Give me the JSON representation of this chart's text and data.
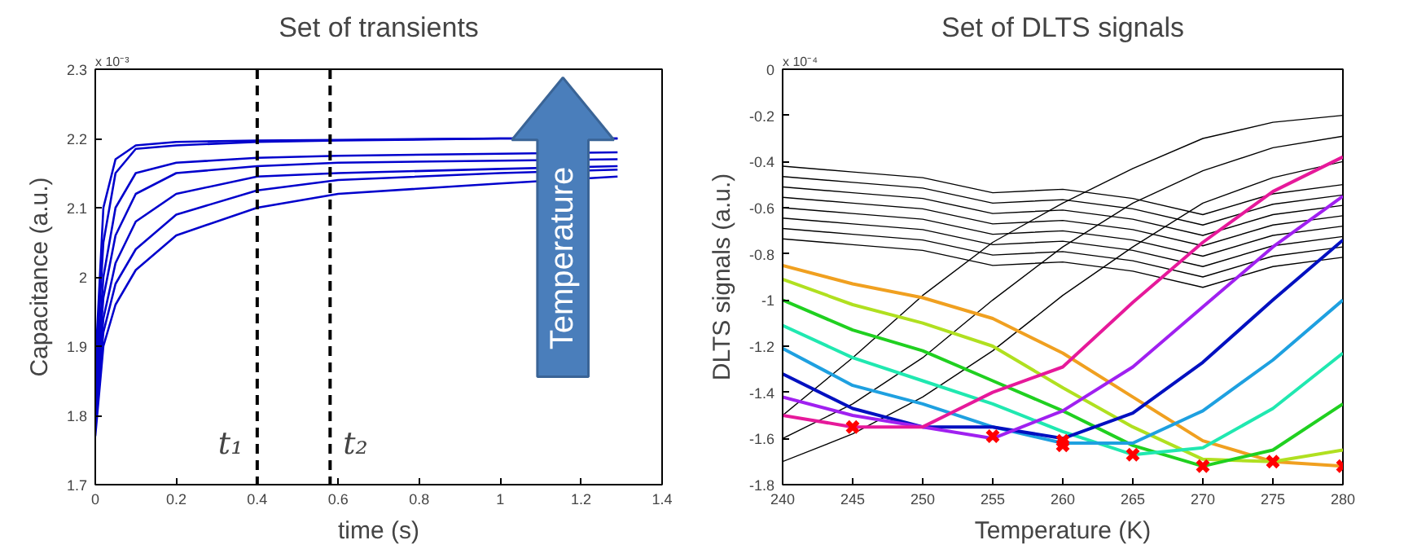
{
  "chart_data": [
    {
      "type": "line",
      "title": "Set of transients",
      "xlabel": "time (s)",
      "ylabel": "Capacitance (a.u.)",
      "annotations": [
        "x 10⁻³",
        "Temperature"
      ],
      "x": [
        0,
        0.02,
        0.05,
        0.1,
        0.2,
        0.4,
        0.6,
        1.0,
        1.29
      ],
      "series": [
        {
          "color": "#0000cc",
          "values": [
            1.87,
            2.1,
            2.17,
            2.19,
            2.195,
            2.197,
            2.198,
            2.2,
            2.2
          ]
        },
        {
          "color": "#0000cc",
          "values": [
            1.85,
            2.05,
            2.15,
            2.185,
            2.19,
            2.195,
            2.197,
            2.2,
            2.2
          ]
        },
        {
          "color": "#0000cc",
          "values": [
            1.83,
            2.0,
            2.1,
            2.15,
            2.165,
            2.172,
            2.175,
            2.178,
            2.18
          ]
        },
        {
          "color": "#0000cc",
          "values": [
            1.82,
            1.97,
            2.06,
            2.12,
            2.15,
            2.16,
            2.165,
            2.168,
            2.17
          ]
        },
        {
          "color": "#0000cc",
          "values": [
            1.8,
            1.94,
            2.02,
            2.08,
            2.12,
            2.145,
            2.15,
            2.156,
            2.16
          ]
        },
        {
          "color": "#0000cc",
          "values": [
            1.79,
            1.92,
            1.99,
            2.04,
            2.09,
            2.125,
            2.14,
            2.15,
            2.155
          ]
        },
        {
          "color": "#0000cc",
          "values": [
            1.77,
            1.9,
            1.96,
            2.01,
            2.06,
            2.1,
            2.12,
            2.135,
            2.145
          ]
        }
      ],
      "xlim": [
        0,
        1.4
      ],
      "xticks": [
        0,
        0.2,
        0.4,
        0.6,
        0.8,
        1,
        1.2,
        1.4
      ],
      "ylim": [
        1.7,
        2.3
      ],
      "yticks": [
        1.7,
        1.8,
        1.9,
        2,
        2.1,
        2.2,
        2.3
      ],
      "ref_lines": [
        {
          "axis": "x",
          "value": 0.4,
          "label": "t₁",
          "color": "#000000",
          "line_style": "dashed"
        },
        {
          "axis": "x",
          "value": 0.58,
          "label": "t₂",
          "color": "#000000",
          "line_style": "dashed"
        }
      ],
      "grid": false,
      "line_style": "solid"
    },
    {
      "type": "line",
      "title": "Set of DLTS signals",
      "xlabel": "Temperature (K)",
      "ylabel": "DLTS signals (a.u.)",
      "annotations": [
        "x 10⁻⁴"
      ],
      "x": [
        240,
        245,
        250,
        255,
        260,
        265,
        270,
        275,
        280
      ],
      "series": [
        {
          "color": "#000000",
          "values": [
            -0.42,
            -0.445,
            -0.47,
            -0.535,
            -0.52,
            -0.56,
            -0.63,
            -0.54,
            -0.5
          ]
        },
        {
          "color": "#000000",
          "values": [
            -0.465,
            -0.49,
            -0.515,
            -0.58,
            -0.565,
            -0.605,
            -0.675,
            -0.585,
            -0.545
          ]
        },
        {
          "color": "#000000",
          "values": [
            -0.51,
            -0.535,
            -0.56,
            -0.625,
            -0.61,
            -0.65,
            -0.72,
            -0.63,
            -0.59
          ]
        },
        {
          "color": "#000000",
          "values": [
            -0.555,
            -0.58,
            -0.605,
            -0.67,
            -0.655,
            -0.695,
            -0.765,
            -0.675,
            -0.635
          ]
        },
        {
          "color": "#000000",
          "values": [
            -0.6,
            -0.625,
            -0.65,
            -0.715,
            -0.7,
            -0.74,
            -0.81,
            -0.72,
            -0.68
          ]
        },
        {
          "color": "#000000",
          "values": [
            -0.645,
            -0.67,
            -0.695,
            -0.76,
            -0.745,
            -0.785,
            -0.855,
            -0.765,
            -0.725
          ]
        },
        {
          "color": "#000000",
          "values": [
            -0.69,
            -0.715,
            -0.74,
            -0.805,
            -0.79,
            -0.83,
            -0.9,
            -0.81,
            -0.77
          ]
        },
        {
          "color": "#000000",
          "values": [
            -0.735,
            -0.76,
            -0.785,
            -0.85,
            -0.835,
            -0.875,
            -0.945,
            -0.855,
            -0.815
          ]
        },
        {
          "color": "#000000",
          "values": [
            -1.5,
            -1.25,
            -0.98,
            -0.75,
            -0.58,
            -0.43,
            -0.3,
            -0.23,
            -0.2
          ]
        },
        {
          "color": "#000000",
          "values": [
            -1.6,
            -1.45,
            -1.25,
            -1.0,
            -0.77,
            -0.58,
            -0.44,
            -0.34,
            -0.29
          ]
        },
        {
          "color": "#000000",
          "values": [
            -1.7,
            -1.58,
            -1.42,
            -1.22,
            -0.98,
            -0.77,
            -0.58,
            -0.47,
            -0.4
          ]
        },
        {
          "color": "#f0a020",
          "values": [
            -0.85,
            -0.93,
            -0.99,
            -1.08,
            -1.23,
            -1.42,
            -1.61,
            -1.7,
            -1.72
          ]
        },
        {
          "color": "#b0e020",
          "values": [
            -0.91,
            -1.02,
            -1.1,
            -1.2,
            -1.38,
            -1.55,
            -1.69,
            -1.7,
            -1.65
          ]
        },
        {
          "color": "#20d020",
          "values": [
            -1.0,
            -1.13,
            -1.22,
            -1.35,
            -1.48,
            -1.63,
            -1.72,
            -1.65,
            -1.45
          ]
        },
        {
          "color": "#20e8b0",
          "values": [
            -1.11,
            -1.25,
            -1.35,
            -1.45,
            -1.57,
            -1.67,
            -1.64,
            -1.47,
            -1.23
          ]
        },
        {
          "color": "#1ea0e0",
          "values": [
            -1.21,
            -1.37,
            -1.45,
            -1.55,
            -1.62,
            -1.62,
            -1.48,
            -1.26,
            -1.0
          ]
        },
        {
          "color": "#0010c0",
          "values": [
            -1.32,
            -1.47,
            -1.55,
            -1.55,
            -1.6,
            -1.49,
            -1.27,
            -1.0,
            -0.74
          ]
        },
        {
          "color": "#a020f0",
          "values": [
            -1.42,
            -1.5,
            -1.55,
            -1.6,
            -1.48,
            -1.29,
            -1.03,
            -0.77,
            -0.55
          ]
        },
        {
          "color": "#e6199a",
          "values": [
            -1.5,
            -1.55,
            -1.55,
            -1.4,
            -1.29,
            -1.01,
            -0.75,
            -0.53,
            -0.38
          ]
        },
        {
          "type": "scatter",
          "color": "#ff0000",
          "marker": "cross",
          "x": [
            245,
            255,
            260,
            260,
            265,
            270,
            275,
            280
          ],
          "values": [
            -1.55,
            -1.59,
            -1.61,
            -1.63,
            -1.67,
            -1.72,
            -1.7,
            -1.72
          ]
        }
      ],
      "xlim": [
        240,
        280
      ],
      "xticks": [
        240,
        245,
        250,
        255,
        260,
        265,
        270,
        275,
        280
      ],
      "ylim": [
        -1.8,
        0
      ],
      "yticks": [
        -1.8,
        -1.6,
        -1.4,
        -1.2,
        -1,
        -0.8,
        -0.6,
        -0.4,
        -0.2,
        0
      ],
      "grid": false,
      "line_style": "solid"
    }
  ]
}
